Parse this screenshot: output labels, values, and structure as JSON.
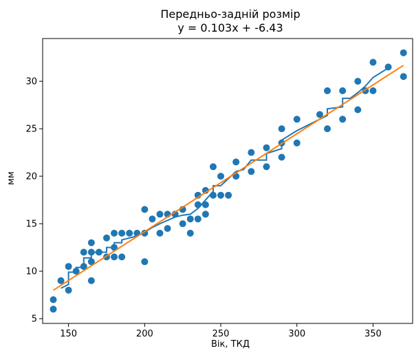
{
  "chart_data": {
    "type": "scatter",
    "title": "Передньо-задній розмір",
    "subtitle": "y = 0.103x + -6.43",
    "xlabel": "Вік, ТКД",
    "ylabel": "мм",
    "xlim": [
      133,
      376
    ],
    "ylim": [
      4.5,
      34.5
    ],
    "xticks": [
      150,
      200,
      250,
      300,
      350
    ],
    "yticks": [
      5,
      10,
      15,
      20,
      25,
      30
    ],
    "grid": false,
    "colors": {
      "points": "#1f77b4",
      "step_line": "#1f77b4",
      "fit_line": "#ff7f0e"
    },
    "points": [
      [
        140,
        6
      ],
      [
        140,
        7
      ],
      [
        145,
        9
      ],
      [
        150,
        8
      ],
      [
        150,
        10.5
      ],
      [
        155,
        10
      ],
      [
        160,
        10.5
      ],
      [
        160,
        12
      ],
      [
        165,
        9
      ],
      [
        165,
        11
      ],
      [
        165,
        12
      ],
      [
        165,
        13
      ],
      [
        170,
        12
      ],
      [
        175,
        11.5
      ],
      [
        175,
        13.5
      ],
      [
        180,
        11.5
      ],
      [
        180,
        12.5
      ],
      [
        180,
        14
      ],
      [
        185,
        11.5
      ],
      [
        185,
        14
      ],
      [
        190,
        14
      ],
      [
        195,
        14
      ],
      [
        200,
        11
      ],
      [
        200,
        14
      ],
      [
        200,
        16.5
      ],
      [
        205,
        15.5
      ],
      [
        210,
        14
      ],
      [
        210,
        16
      ],
      [
        215,
        14.5
      ],
      [
        215,
        16
      ],
      [
        220,
        16
      ],
      [
        225,
        15
      ],
      [
        225,
        16.5
      ],
      [
        230,
        14
      ],
      [
        230,
        15.5
      ],
      [
        235,
        15.5
      ],
      [
        235,
        17
      ],
      [
        235,
        18
      ],
      [
        240,
        16
      ],
      [
        240,
        17
      ],
      [
        240,
        18.5
      ],
      [
        245,
        18
      ],
      [
        245,
        21
      ],
      [
        250,
        18
      ],
      [
        250,
        20
      ],
      [
        255,
        18
      ],
      [
        260,
        20
      ],
      [
        260,
        21.5
      ],
      [
        270,
        20.5
      ],
      [
        270,
        22.5
      ],
      [
        280,
        21
      ],
      [
        280,
        23
      ],
      [
        290,
        22
      ],
      [
        290,
        23.5
      ],
      [
        290,
        25
      ],
      [
        300,
        23.5
      ],
      [
        300,
        26
      ],
      [
        315,
        26.5
      ],
      [
        320,
        25
      ],
      [
        320,
        29
      ],
      [
        330,
        26
      ],
      [
        330,
        29
      ],
      [
        340,
        27
      ],
      [
        340,
        30
      ],
      [
        345,
        29
      ],
      [
        350,
        29
      ],
      [
        350,
        32
      ],
      [
        360,
        31.5
      ],
      [
        370,
        30.5
      ],
      [
        370,
        33
      ]
    ],
    "step_line": [
      [
        145,
        8.2
      ],
      [
        150,
        8.6
      ],
      [
        150,
        9.9
      ],
      [
        155,
        9.9
      ],
      [
        155,
        10.4
      ],
      [
        160,
        10.4
      ],
      [
        160,
        11.4
      ],
      [
        165,
        11.4
      ],
      [
        165,
        12
      ],
      [
        175,
        12
      ],
      [
        175,
        12.5
      ],
      [
        180,
        12.5
      ],
      [
        180,
        13
      ],
      [
        185,
        13
      ],
      [
        185,
        13.3
      ],
      [
        190,
        13.5
      ],
      [
        195,
        13.7
      ],
      [
        200,
        14.1
      ],
      [
        205,
        14.6
      ],
      [
        210,
        15
      ],
      [
        220,
        15.7
      ],
      [
        225,
        15.9
      ],
      [
        230,
        16
      ],
      [
        235,
        16.6
      ],
      [
        240,
        17.5
      ],
      [
        245,
        18.4
      ],
      [
        245,
        19
      ],
      [
        250,
        19
      ],
      [
        260,
        20.5
      ],
      [
        265,
        20.7
      ],
      [
        270,
        21.7
      ],
      [
        280,
        21.7
      ],
      [
        280,
        22.4
      ],
      [
        290,
        22.9
      ],
      [
        290,
        23.8
      ],
      [
        300,
        24.8
      ],
      [
        310,
        25.6
      ],
      [
        320,
        26.4
      ],
      [
        320,
        27.1
      ],
      [
        330,
        27.3
      ],
      [
        330,
        28.2
      ],
      [
        335,
        28.2
      ],
      [
        340,
        28.8
      ],
      [
        345,
        29.5
      ],
      [
        350,
        30.4
      ],
      [
        360,
        31.4
      ]
    ],
    "fit_line": {
      "slope": 0.103,
      "intercept": -6.43,
      "x_range": [
        140,
        370
      ]
    }
  }
}
